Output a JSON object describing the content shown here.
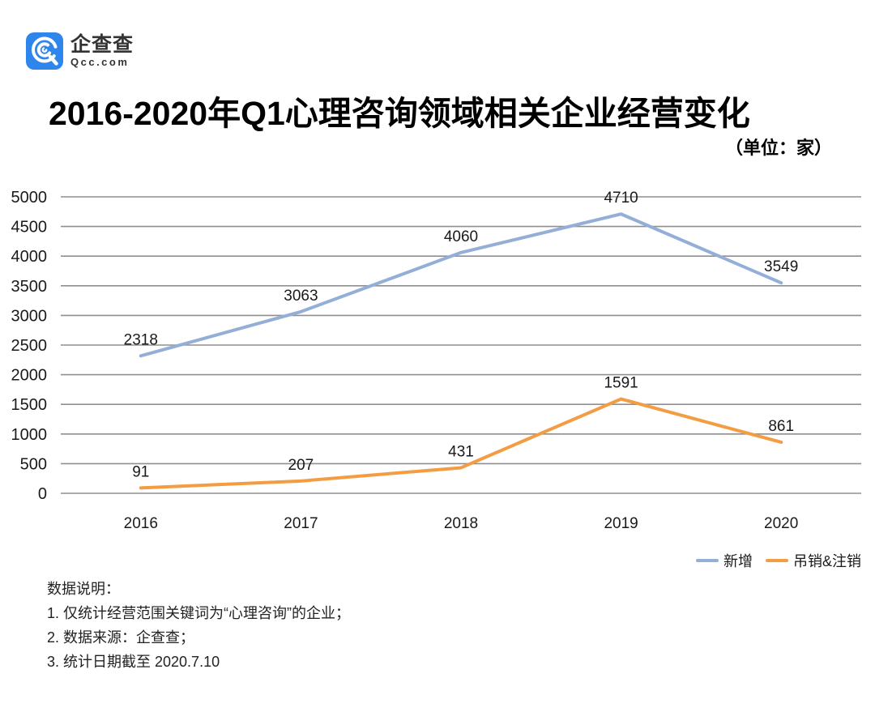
{
  "logo": {
    "name": "企查查",
    "domain": "Qcc.com",
    "brand_color": "#2E86EC"
  },
  "header": {
    "title": "2016-2020年Q1心理咨询领域相关企业经营变化",
    "unit": "（单位：家）"
  },
  "chart_data": {
    "type": "line",
    "title": "2016-2020年Q1心理咨询领域相关企业经营变化",
    "unit_label": "（单位：家）",
    "categories": [
      "2016",
      "2017",
      "2018",
      "2019",
      "2020"
    ],
    "series": [
      {
        "name": "新增",
        "color": "#94AFD7",
        "values": [
          2318,
          3063,
          4060,
          4710,
          3549
        ]
      },
      {
        "name": "吊销&注销",
        "color": "#F49C42",
        "values": [
          91,
          207,
          431,
          1591,
          861
        ]
      }
    ],
    "ylim": [
      0,
      5000
    ],
    "ytick_step": 500,
    "grid": true,
    "grid_color": "#8f8f8f",
    "label_color": "#1a1a1a",
    "legend_position": "bottom-right"
  },
  "notes": {
    "heading": "数据说明：",
    "items": [
      "1. 仅统计经营范围关键词为“心理咨询”的企业；",
      "2. 数据来源：企查查；",
      "3. 统计日期截至 2020.7.10"
    ]
  }
}
